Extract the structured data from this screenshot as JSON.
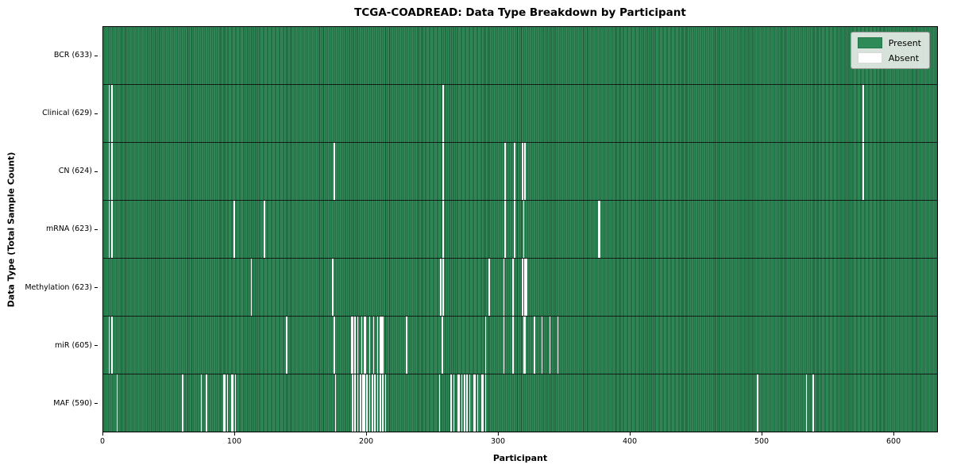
{
  "figure": {
    "title": "TCGA-COADREAD: Data Type Breakdown by Participant",
    "xlabel": "Participant",
    "ylabel": "Data Type (Total Sample Count)"
  },
  "legend": {
    "items": [
      {
        "label": "Present",
        "color": "#2e8b57"
      },
      {
        "label": "Absent",
        "color": "#ffffff"
      }
    ]
  },
  "chart_data": {
    "type": "heatmap",
    "title": "TCGA-COADREAD: Data Type Breakdown by Participant",
    "xlabel": "Participant",
    "ylabel": "Data Type (Total Sample Count)",
    "legend_position": "upper right",
    "present_color": "#2e8b57",
    "absent_color": "#ffffff",
    "x_ticks": [
      0,
      100,
      200,
      300,
      400,
      500,
      600
    ],
    "x_max": 633.7,
    "total_participants": 633,
    "rows": [
      {
        "label": "BCR (633)",
        "name": "BCR",
        "present_count": 633,
        "absent_participants": []
      },
      {
        "label": "Clinical (629)",
        "name": "Clinical",
        "present_count": 629,
        "absent_participants": [
          4,
          6,
          258,
          577
        ]
      },
      {
        "label": "CN (624)",
        "name": "CN",
        "present_count": 624,
        "absent_participants": [
          4,
          6,
          175,
          258,
          305,
          312,
          318,
          320,
          577
        ]
      },
      {
        "label": "mRNA (623)",
        "name": "mRNA",
        "present_count": 623,
        "absent_participants": [
          4,
          6,
          99,
          122,
          258,
          305,
          312,
          319,
          376,
          377
        ]
      },
      {
        "label": "Methylation (623)",
        "name": "Methylation",
        "present_count": 623,
        "absent_participants": [
          112,
          174,
          256,
          258,
          293,
          304,
          311,
          318,
          320,
          321
        ]
      },
      {
        "label": "miR (605)",
        "name": "miR",
        "present_count": 605,
        "absent_participants": [
          4,
          6,
          139,
          175,
          188,
          189,
          191,
          193,
          196,
          198,
          199,
          202,
          205,
          208,
          210,
          211,
          212,
          230,
          257,
          290,
          304,
          311,
          319,
          320,
          327,
          333,
          339,
          345
        ]
      },
      {
        "label": "MAF (590)",
        "name": "MAF",
        "present_count": 590,
        "absent_participants": [
          10,
          60,
          74,
          78,
          91,
          92,
          94,
          97,
          98,
          100,
          176,
          189,
          191,
          193,
          195,
          197,
          198,
          200,
          202,
          204,
          206,
          208,
          210,
          212,
          214,
          255,
          264,
          266,
          269,
          270,
          272,
          274,
          276,
          278,
          281,
          282,
          284,
          287,
          288,
          290,
          497,
          534,
          539
        ]
      }
    ]
  }
}
